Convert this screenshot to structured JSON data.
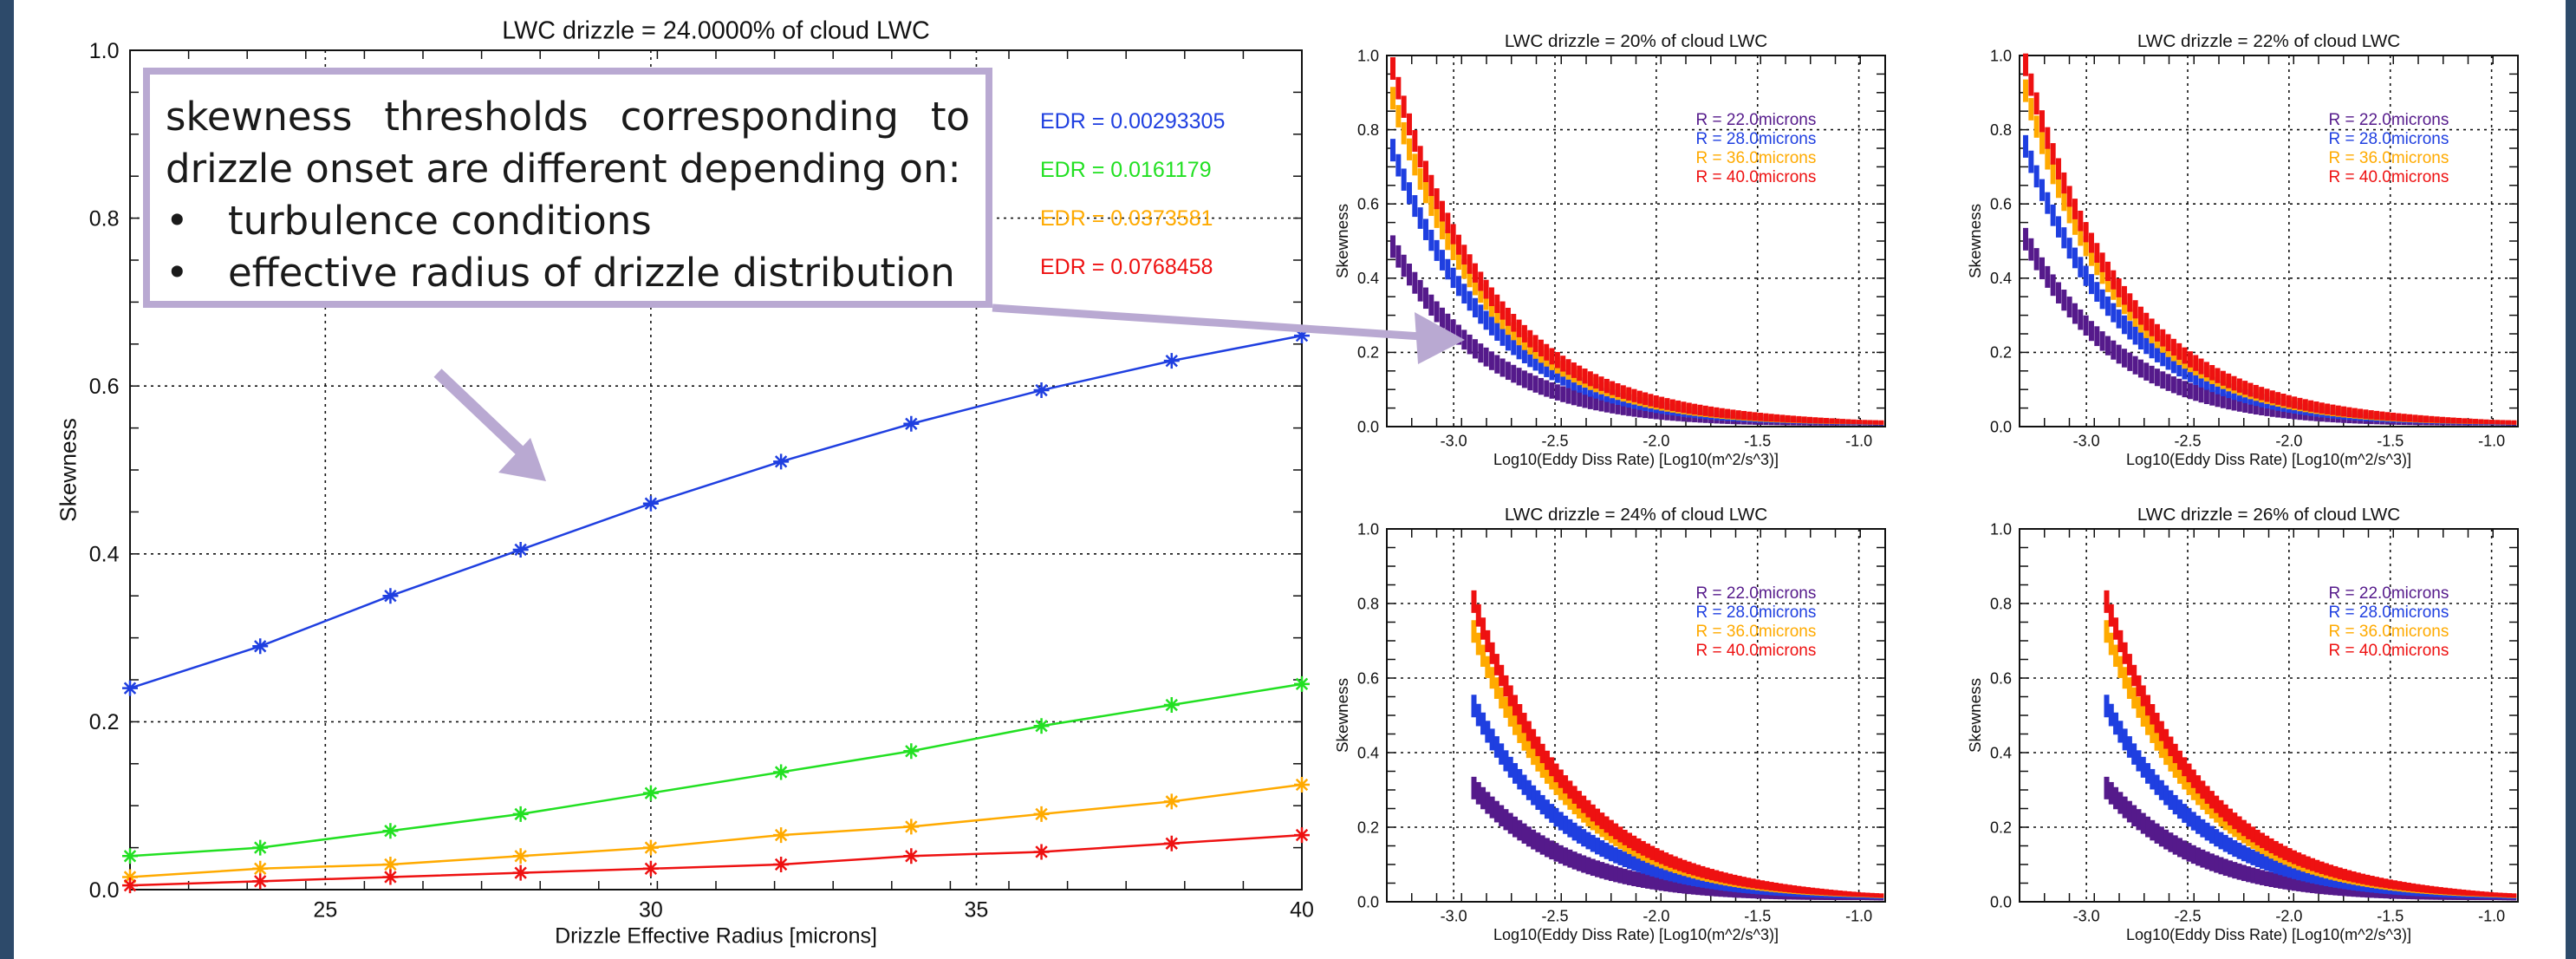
{
  "colors": {
    "blue": "#1f3fe0",
    "green": "#22e022",
    "orange": "#ffaa00",
    "red": "#ee1111",
    "purple": "#551a8b",
    "callout_border": "#b9a9d2",
    "arrow": "#b9a9d2",
    "border": "#2d4a6a"
  },
  "callout": {
    "line1": "skewness thresholds corresponding to",
    "line2": "drizzle onset are different depending on:",
    "bullet_char": "•",
    "bullets": [
      "turbulence conditions",
      "effective radius of drizzle distribution"
    ]
  },
  "chart_data": [
    {
      "type": "line",
      "title": "LWC drizzle = 24.0000% of cloud LWC",
      "xlabel": "Drizzle Effective Radius [microns]",
      "ylabel": "Skewness",
      "xlim": [
        22,
        40
      ],
      "ylim": [
        0,
        1
      ],
      "x_ticks": [
        25,
        30,
        35,
        40
      ],
      "y_ticks": [
        0.0,
        0.2,
        0.4,
        0.6,
        0.8,
        1.0
      ],
      "y_tick_labels": [
        "0.0",
        "0.2",
        "0.4",
        "0.6",
        "0.8",
        "1.0"
      ],
      "grid": true,
      "x": [
        22,
        24,
        26,
        28,
        30,
        32,
        34,
        36,
        38,
        40
      ],
      "series": [
        {
          "name": "EDR = 0.00293305",
          "color": "#1f3fe0",
          "values": [
            0.24,
            0.29,
            0.35,
            0.405,
            0.46,
            0.51,
            0.555,
            0.595,
            0.63,
            0.66
          ]
        },
        {
          "name": "EDR = 0.0161179",
          "color": "#22e022",
          "values": [
            0.04,
            0.05,
            0.07,
            0.09,
            0.115,
            0.14,
            0.165,
            0.195,
            0.22,
            0.245
          ]
        },
        {
          "name": "EDR = 0.0373581",
          "color": "#ffaa00",
          "values": [
            0.015,
            0.025,
            0.03,
            0.04,
            0.05,
            0.065,
            0.075,
            0.09,
            0.105,
            0.125
          ]
        },
        {
          "name": "EDR = 0.0768458",
          "color": "#ee1111",
          "values": [
            0.005,
            0.01,
            0.015,
            0.02,
            0.025,
            0.03,
            0.04,
            0.045,
            0.055,
            0.065
          ]
        }
      ]
    },
    {
      "type": "scatter",
      "title": "LWC drizzle = 20% of cloud LWC",
      "xlabel": "Log10(Eddy Diss Rate) [Log10(m^2/s^3)]",
      "ylabel": "Skewness",
      "xlim": [
        -3.33,
        -0.87
      ],
      "ylim": [
        0,
        1
      ],
      "x_ticks": [
        -3.0,
        -2.5,
        -2.0,
        -1.5,
        -1.0
      ],
      "x_tick_labels": [
        "-3.0",
        "-2.5",
        "-2.0",
        "-1.5",
        "-1.0"
      ],
      "y_ticks": [
        0.0,
        0.2,
        0.4,
        0.6,
        0.8,
        1.0
      ],
      "y_tick_labels": [
        "0.0",
        "0.2",
        "0.4",
        "0.6",
        "0.8",
        "1.0"
      ],
      "grid": true,
      "legend": [
        "R = 22.0microns",
        "R = 28.0microns",
        "R = 36.0microns",
        "R = 40.0microns"
      ],
      "series_colors": [
        "#551a8b",
        "#1f3fe0",
        "#ffaa00",
        "#ee1111"
      ],
      "curves": [
        {
          "name": "R = 22.0microns",
          "peak": 0.48,
          "x0": -3.3
        },
        {
          "name": "R = 28.0microns",
          "peak": 0.74,
          "x0": -3.3
        },
        {
          "name": "R = 36.0microns",
          "peak": 0.88,
          "x0": -3.3
        },
        {
          "name": "R = 40.0microns",
          "peak": 0.96,
          "x0": -3.3
        }
      ]
    },
    {
      "type": "scatter",
      "title": "LWC drizzle = 22% of cloud LWC",
      "xlabel": "Log10(Eddy Diss Rate) [Log10(m^2/s^3)]",
      "ylabel": "Skewness",
      "xlim": [
        -3.33,
        -0.87
      ],
      "ylim": [
        0,
        1
      ],
      "x_ticks": [
        -3.0,
        -2.5,
        -2.0,
        -1.5,
        -1.0
      ],
      "x_tick_labels": [
        "-3.0",
        "-2.5",
        "-2.0",
        "-1.5",
        "-1.0"
      ],
      "y_ticks": [
        0.0,
        0.2,
        0.4,
        0.6,
        0.8,
        1.0
      ],
      "y_tick_labels": [
        "0.0",
        "0.2",
        "0.4",
        "0.6",
        "0.8",
        "1.0"
      ],
      "grid": true,
      "legend": [
        "R = 22.0microns",
        "R = 28.0microns",
        "R = 36.0microns",
        "R = 40.0microns"
      ],
      "series_colors": [
        "#551a8b",
        "#1f3fe0",
        "#ffaa00",
        "#ee1111"
      ],
      "curves": [
        {
          "name": "R = 22.0microns",
          "peak": 0.5,
          "x0": -3.3
        },
        {
          "name": "R = 28.0microns",
          "peak": 0.75,
          "x0": -3.3
        },
        {
          "name": "R = 36.0microns",
          "peak": 0.9,
          "x0": -3.3
        },
        {
          "name": "R = 40.0microns",
          "peak": 0.97,
          "x0": -3.3
        }
      ]
    },
    {
      "type": "scatter",
      "title": "LWC drizzle = 24% of cloud LWC",
      "xlabel": "Log10(Eddy Diss Rate) [Log10(m^2/s^3)]",
      "ylabel": "Skewness",
      "xlim": [
        -3.33,
        -0.87
      ],
      "ylim": [
        0,
        1
      ],
      "x_ticks": [
        -3.0,
        -2.5,
        -2.0,
        -1.5,
        -1.0
      ],
      "x_tick_labels": [
        "-3.0",
        "-2.5",
        "-2.0",
        "-1.5",
        "-1.0"
      ],
      "y_ticks": [
        0.0,
        0.2,
        0.4,
        0.6,
        0.8,
        1.0
      ],
      "y_tick_labels": [
        "0.0",
        "0.2",
        "0.4",
        "0.6",
        "0.8",
        "1.0"
      ],
      "grid": true,
      "legend": [
        "R = 22.0microns",
        "R = 28.0microns",
        "R = 36.0microns",
        "R = 40.0microns"
      ],
      "series_colors": [
        "#551a8b",
        "#1f3fe0",
        "#ffaa00",
        "#ee1111"
      ],
      "curves": [
        {
          "name": "R = 22.0microns",
          "peak": 0.3,
          "x0": -2.9
        },
        {
          "name": "R = 28.0microns",
          "peak": 0.52,
          "x0": -2.9
        },
        {
          "name": "R = 36.0microns",
          "peak": 0.72,
          "x0": -2.9
        },
        {
          "name": "R = 40.0microns",
          "peak": 0.8,
          "x0": -2.9
        }
      ]
    },
    {
      "type": "scatter",
      "title": "LWC drizzle = 26% of cloud LWC",
      "xlabel": "Log10(Eddy Diss Rate) [Log10(m^2/s^3)]",
      "ylabel": "Skewness",
      "xlim": [
        -3.33,
        -0.87
      ],
      "ylim": [
        0,
        1
      ],
      "x_ticks": [
        -3.0,
        -2.5,
        -2.0,
        -1.5,
        -1.0
      ],
      "x_tick_labels": [
        "-3.0",
        "-2.5",
        "-2.0",
        "-1.5",
        "-1.0"
      ],
      "y_ticks": [
        0.0,
        0.2,
        0.4,
        0.6,
        0.8,
        1.0
      ],
      "y_tick_labels": [
        "0.0",
        "0.2",
        "0.4",
        "0.6",
        "0.8",
        "1.0"
      ],
      "grid": true,
      "legend": [
        "R = 22.0microns",
        "R = 28.0microns",
        "R = 36.0microns",
        "R = 40.0microns"
      ],
      "series_colors": [
        "#551a8b",
        "#1f3fe0",
        "#ffaa00",
        "#ee1111"
      ],
      "curves": [
        {
          "name": "R = 22.0microns",
          "peak": 0.3,
          "x0": -2.9
        },
        {
          "name": "R = 28.0microns",
          "peak": 0.52,
          "x0": -2.9
        },
        {
          "name": "R = 36.0microns",
          "peak": 0.72,
          "x0": -2.9
        },
        {
          "name": "R = 40.0microns",
          "peak": 0.8,
          "x0": -2.9
        }
      ]
    }
  ]
}
